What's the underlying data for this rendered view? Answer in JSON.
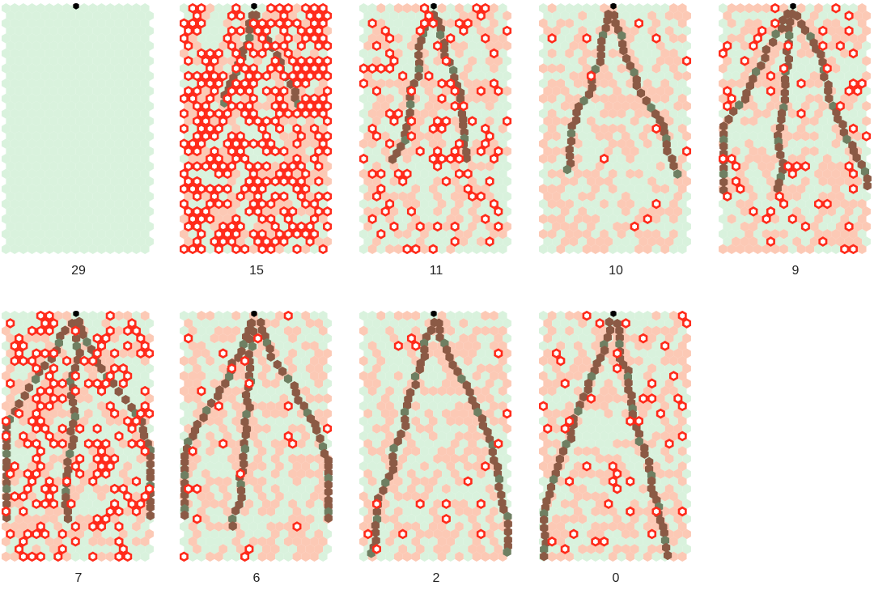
{
  "title": "",
  "colors": {
    "background": "#ffffff",
    "empty_cell": "#d9f2dd",
    "visited_cell": "#fcc9b5",
    "marker": "#ff2a1a",
    "path": "#8b5a45",
    "path_overlap": "#6f7f62",
    "root": "#000000"
  },
  "panels": [
    {
      "label": "29",
      "marker_density": 0.0,
      "path_steps": 0,
      "branches": 0
    },
    {
      "label": "15",
      "marker_density": 0.55,
      "path_steps": 14,
      "branches": 2
    },
    {
      "label": "11",
      "marker_density": 0.18,
      "path_steps": 22,
      "branches": 2
    },
    {
      "label": "10",
      "marker_density": 0.03,
      "path_steps": 24,
      "branches": 2
    },
    {
      "label": "9",
      "marker_density": 0.12,
      "path_steps": 26,
      "branches": 3
    },
    {
      "label": "7",
      "marker_density": 0.25,
      "path_steps": 28,
      "branches": 3
    },
    {
      "label": "6",
      "marker_density": 0.04,
      "path_steps": 30,
      "branches": 3
    },
    {
      "label": "2",
      "marker_density": 0.04,
      "path_steps": 34,
      "branches": 2
    },
    {
      "label": "0",
      "marker_density": 0.07,
      "path_steps": 36,
      "branches": 2
    }
  ]
}
